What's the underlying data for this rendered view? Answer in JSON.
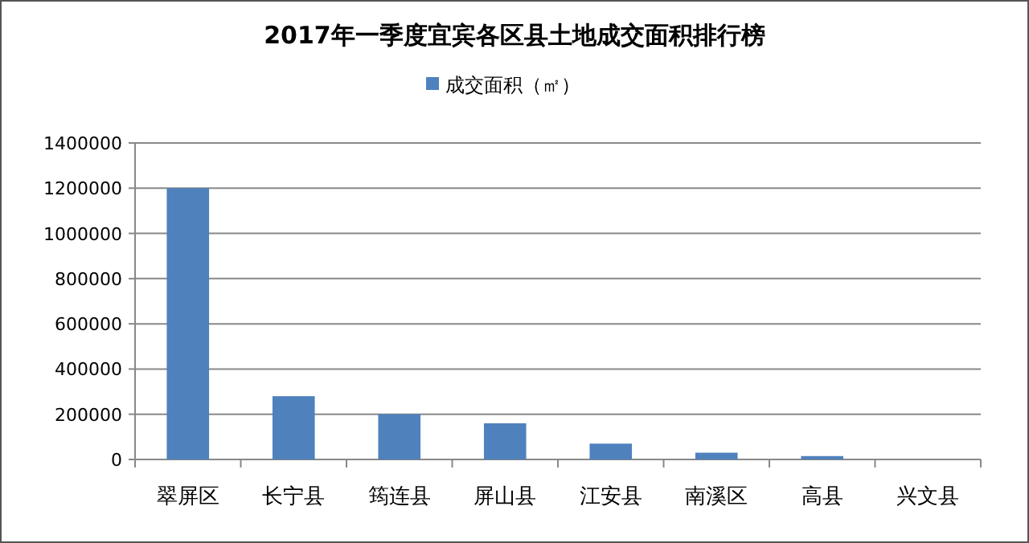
{
  "chart_data": {
    "type": "bar",
    "title": "2017年一季度宜宾各区县土地成交面积排行榜",
    "categories": [
      "翠屏区",
      "长宁县",
      "筠连县",
      "屏山县",
      "江安县",
      "南溪区",
      "高县",
      "兴文县"
    ],
    "series": [
      {
        "name": "成交面积（㎡）",
        "color": "#4f81bd",
        "values": [
          1200000,
          280000,
          200000,
          160000,
          70000,
          30000,
          15000,
          0
        ]
      }
    ],
    "ylim": [
      0,
      1400000
    ],
    "yticks": [
      0,
      200000,
      400000,
      600000,
      800000,
      1000000,
      1200000,
      1400000
    ],
    "grid": "y",
    "legend": "top"
  }
}
